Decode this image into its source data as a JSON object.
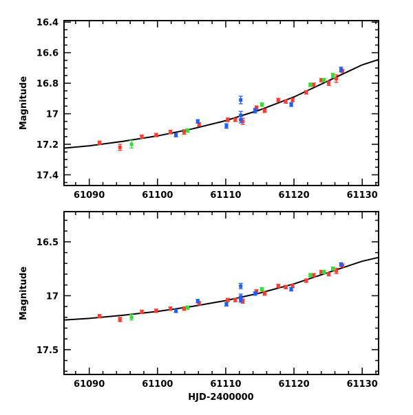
{
  "chart_data": {
    "type": "scatter",
    "xlabel": "HJD-2400000",
    "ylabel": "Magnitude",
    "xlim": [
      61086.3,
      61132.4
    ],
    "x_ticks": [
      61090,
      61100,
      61110,
      61120,
      61130
    ],
    "colors": {
      "red": "#ff3b2f",
      "green": "#33dd33",
      "blue": "#1a5fff",
      "model": "#000000"
    },
    "panels": [
      {
        "ylim": [
          16.39,
          17.47
        ],
        "inverted": true,
        "y_ticks": [
          "16.4",
          "16.6",
          "16.8",
          "17",
          "17.2",
          "17.4"
        ],
        "y_minor": 0.05
      },
      {
        "ylim": [
          16.22,
          17.73
        ],
        "inverted": true,
        "y_ticks": [
          "16.5",
          "17",
          "17.5"
        ],
        "y_minor": 0.1
      }
    ],
    "series": [
      {
        "name": "red",
        "color": "#ff3b2f",
        "points": [
          [
            61091.5,
            17.19,
            0.01
          ],
          [
            61094.5,
            17.22,
            0.02
          ],
          [
            61097.7,
            17.15,
            0.01
          ],
          [
            61099.8,
            17.14,
            0.01
          ],
          [
            61101.9,
            17.12,
            0.012
          ],
          [
            61103.9,
            17.12,
            0.015
          ],
          [
            61106.1,
            17.07,
            0.01
          ],
          [
            61110.3,
            17.04,
            0.012
          ],
          [
            61111.4,
            17.04,
            0.01
          ],
          [
            61112.5,
            17.05,
            0.02
          ],
          [
            61114.5,
            16.96,
            0.01
          ],
          [
            61115.7,
            16.98,
            0.012
          ],
          [
            61117.7,
            16.91,
            0.01
          ],
          [
            61118.8,
            16.92,
            0.01
          ],
          [
            61119.8,
            16.91,
            0.01
          ],
          [
            61121.8,
            16.86,
            0.01
          ],
          [
            61122.9,
            16.81,
            0.01
          ],
          [
            61124.0,
            16.78,
            0.01
          ],
          [
            61125.1,
            16.8,
            0.015
          ],
          [
            61126.2,
            16.77,
            0.025
          ],
          [
            61127.1,
            16.72,
            0.01
          ]
        ]
      },
      {
        "name": "green",
        "color": "#33dd33",
        "points": [
          [
            61096.2,
            17.2,
            0.025
          ],
          [
            61104.4,
            17.11,
            0.01
          ],
          [
            61115.3,
            16.94,
            0.01
          ],
          [
            61122.4,
            16.81,
            0.01
          ],
          [
            61124.4,
            16.78,
            0.01
          ],
          [
            61125.7,
            16.75,
            0.015
          ]
        ]
      },
      {
        "name": "blue",
        "color": "#1a5fff",
        "points": [
          [
            61102.7,
            17.14,
            0.01
          ],
          [
            61105.9,
            17.05,
            0.01
          ],
          [
            61110.1,
            17.08,
            0.015
          ],
          [
            61112.2,
            16.91,
            0.025
          ],
          [
            61112.2,
            17.01,
            0.025
          ],
          [
            61112.2,
            17.04,
            0.02
          ],
          [
            61114.3,
            16.98,
            0.015
          ],
          [
            61119.6,
            16.94,
            0.012
          ],
          [
            61126.9,
            16.71,
            0.015
          ]
        ]
      }
    ],
    "model": [
      [
        61086.3,
        17.225
      ],
      [
        61090,
        17.21
      ],
      [
        61095,
        17.18
      ],
      [
        61100,
        17.145
      ],
      [
        61105,
        17.1
      ],
      [
        61110,
        17.045
      ],
      [
        61115,
        16.975
      ],
      [
        61120,
        16.89
      ],
      [
        61125,
        16.785
      ],
      [
        61130,
        16.68
      ],
      [
        61132.4,
        16.645
      ]
    ]
  }
}
